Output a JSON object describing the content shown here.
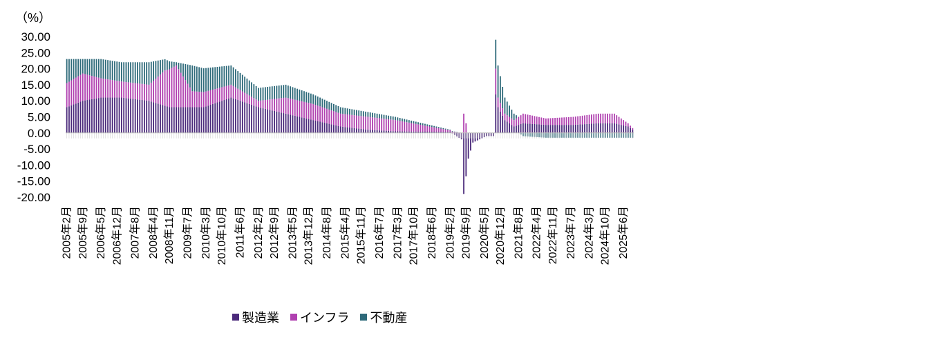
{
  "chart_data": {
    "type": "bar",
    "stacked": true,
    "unit_label": "（%）",
    "yticks": [
      "30.00",
      "25.00",
      "20.00",
      "15.00",
      "10.00",
      "5.00",
      "0.00",
      "-5.00",
      "-10.00",
      "-15.00",
      "-20.00"
    ],
    "ylim": [
      -20,
      30
    ],
    "start": [
      2005,
      2
    ],
    "months": 249,
    "xtick_labels": [
      "2005年2月",
      "2005年9月",
      "2006年5月",
      "2006年12月",
      "2007年8月",
      "2008年4月",
      "2008年11月",
      "2009年7月",
      "2010年3月",
      "2010年10月",
      "2011年6月",
      "2012年2月",
      "2012年9月",
      "2013年5月",
      "2013年12月",
      "2014年8月",
      "2015年4月",
      "2015年11月",
      "2016年7月",
      "2017年3月",
      "2017年10月",
      "2018年6月",
      "2019年2月",
      "2019年9月",
      "2020年5月",
      "2020年12月",
      "2021年8月",
      "2022年4月",
      "2022年11月",
      "2023年7月",
      "2024年3月",
      "2024年10月",
      "2025年6月"
    ],
    "series": [
      {
        "name": "製造業",
        "color": "#4b2a7b",
        "anchors": [
          [
            0,
            8
          ],
          [
            7,
            10
          ],
          [
            15,
            11
          ],
          [
            24,
            11
          ],
          [
            36,
            10
          ],
          [
            45,
            8
          ],
          [
            60,
            8
          ],
          [
            72,
            11
          ],
          [
            84,
            8
          ],
          [
            96,
            6
          ],
          [
            108,
            4
          ],
          [
            120,
            2
          ],
          [
            132,
            1
          ],
          [
            144,
            0.5
          ],
          [
            168,
            0.3
          ],
          [
            173,
            -2
          ],
          [
            174,
            -19
          ],
          [
            176,
            -8
          ],
          [
            178,
            -3
          ],
          [
            184,
            -1
          ],
          [
            187,
            -1
          ],
          [
            188,
            12
          ],
          [
            189,
            8
          ],
          [
            192,
            4
          ],
          [
            196,
            2
          ],
          [
            200,
            3
          ],
          [
            210,
            2.5
          ],
          [
            222,
            2.5
          ],
          [
            233,
            3
          ],
          [
            240,
            3
          ],
          [
            246,
            2
          ],
          [
            248,
            1
          ]
        ]
      },
      {
        "name": "インフラ",
        "color": "#b040b0",
        "anchors": [
          [
            0,
            7.5
          ],
          [
            7,
            8.5
          ],
          [
            15,
            6
          ],
          [
            24,
            5
          ],
          [
            36,
            5
          ],
          [
            43,
            11
          ],
          [
            48,
            13
          ],
          [
            55,
            5
          ],
          [
            72,
            4
          ],
          [
            84,
            2
          ],
          [
            96,
            5
          ],
          [
            108,
            5
          ],
          [
            120,
            4
          ],
          [
            132,
            4
          ],
          [
            144,
            3.5
          ],
          [
            168,
            0.5
          ],
          [
            173,
            0
          ],
          [
            174,
            6
          ],
          [
            176,
            0
          ],
          [
            184,
            0
          ],
          [
            187,
            0
          ],
          [
            188,
            8
          ],
          [
            189,
            3
          ],
          [
            192,
            2
          ],
          [
            196,
            2
          ],
          [
            200,
            3
          ],
          [
            210,
            2
          ],
          [
            222,
            2.5
          ],
          [
            233,
            3
          ],
          [
            240,
            3
          ],
          [
            246,
            1
          ],
          [
            248,
            0.5
          ]
        ]
      },
      {
        "name": "不動産",
        "color": "#2e6a7a",
        "anchors": [
          [
            0,
            7.5
          ],
          [
            7,
            4.5
          ],
          [
            15,
            6
          ],
          [
            24,
            6
          ],
          [
            36,
            7
          ],
          [
            48,
            1
          ],
          [
            55,
            8
          ],
          [
            72,
            6
          ],
          [
            84,
            4
          ],
          [
            96,
            4
          ],
          [
            108,
            3
          ],
          [
            120,
            2
          ],
          [
            132,
            1.5
          ],
          [
            144,
            1
          ],
          [
            168,
            0.2
          ],
          [
            173,
            0
          ],
          [
            174,
            0
          ],
          [
            184,
            0
          ],
          [
            187,
            0
          ],
          [
            188,
            9
          ],
          [
            189,
            10
          ],
          [
            192,
            5
          ],
          [
            196,
            2
          ],
          [
            198,
            0
          ],
          [
            200,
            -1
          ],
          [
            210,
            -1.5
          ],
          [
            222,
            -1.5
          ],
          [
            233,
            -1.5
          ],
          [
            248,
            -1.5
          ]
        ]
      }
    ]
  },
  "legend": {
    "items": [
      {
        "label": "製造業",
        "color": "#4b2a7b"
      },
      {
        "label": "インフラ",
        "color": "#b040b0"
      },
      {
        "label": "不動産",
        "color": "#2e6a7a"
      }
    ]
  }
}
